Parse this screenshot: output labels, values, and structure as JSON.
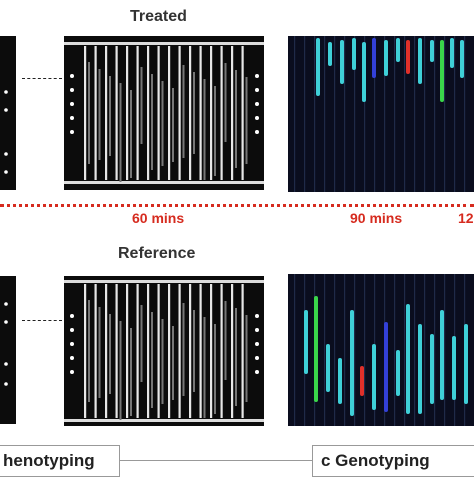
{
  "headings": {
    "treated": "Treated",
    "reference": "Reference"
  },
  "timepoints": {
    "t60": "60 mins",
    "t90": "90 mins",
    "t120": "12"
  },
  "sections": {
    "phenotyping": "henotyping",
    "genotyping": "c Genotyping"
  },
  "colors": {
    "accent_red": "#d62b1f",
    "cyan": "#3fd0d8",
    "blue": "#3340d8",
    "red": "#e0302a",
    "green": "#3ad64a"
  }
}
